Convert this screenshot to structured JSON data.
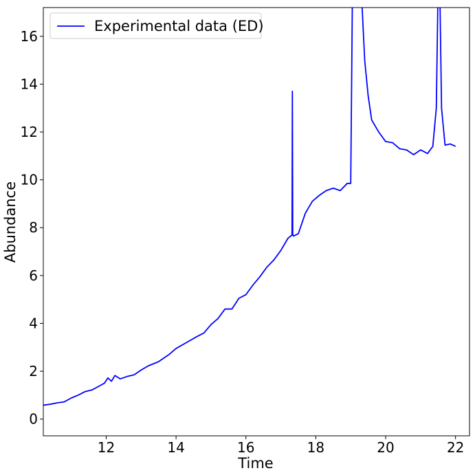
{
  "colors": {
    "series": "#0000ff",
    "axes": "#000000",
    "background": "#ffffff",
    "legend_border": "#cccccc"
  },
  "chart_data": {
    "type": "line",
    "title": "",
    "xlabel": "Time",
    "ylabel": "Abundance",
    "xlim": [
      10.2,
      22.4
    ],
    "ylim": [
      -0.7,
      17.2
    ],
    "xticks": [
      12,
      14,
      16,
      18,
      20,
      22
    ],
    "yticks": [
      0,
      2,
      4,
      6,
      8,
      10,
      12,
      14,
      16
    ],
    "grid": false,
    "legend_position": "top-left",
    "series": [
      {
        "name": "Experimental data (ED)",
        "color": "#0000ff",
        "x": [
          10.2,
          10.4,
          10.6,
          10.8,
          11.0,
          11.2,
          11.4,
          11.6,
          11.8,
          11.95,
          12.05,
          12.15,
          12.25,
          12.4,
          12.6,
          12.8,
          13.0,
          13.2,
          13.5,
          13.8,
          14.0,
          14.3,
          14.6,
          14.8,
          15.0,
          15.2,
          15.4,
          15.6,
          15.8,
          16.0,
          16.2,
          16.4,
          16.6,
          16.8,
          17.0,
          17.2,
          17.32,
          17.33,
          17.34,
          17.36,
          17.5,
          17.7,
          17.9,
          18.1,
          18.3,
          18.5,
          18.7,
          18.9,
          19.0,
          19.05,
          19.1,
          19.2,
          19.3,
          19.4,
          19.5,
          19.6,
          19.8,
          20.0,
          20.2,
          20.4,
          20.6,
          20.8,
          21.0,
          21.2,
          21.35,
          21.45,
          21.5,
          21.55,
          21.6,
          21.7,
          21.85,
          22.0
        ],
        "y": [
          0.58,
          0.62,
          0.68,
          0.72,
          0.88,
          1.0,
          1.15,
          1.22,
          1.38,
          1.5,
          1.72,
          1.58,
          1.82,
          1.68,
          1.78,
          1.85,
          2.05,
          2.22,
          2.4,
          2.7,
          2.95,
          3.2,
          3.45,
          3.6,
          3.95,
          4.2,
          4.6,
          4.6,
          5.05,
          5.2,
          5.6,
          5.95,
          6.35,
          6.65,
          7.05,
          7.55,
          7.7,
          13.7,
          7.7,
          7.65,
          7.75,
          8.6,
          9.1,
          9.35,
          9.55,
          9.65,
          9.55,
          9.85,
          9.85,
          18.0,
          18.0,
          18.0,
          18.0,
          15.0,
          13.5,
          12.5,
          12.0,
          11.6,
          11.55,
          11.3,
          11.25,
          11.05,
          11.25,
          11.1,
          11.4,
          13.0,
          18.0,
          18.0,
          13.0,
          11.45,
          11.5,
          11.4
        ]
      }
    ]
  }
}
